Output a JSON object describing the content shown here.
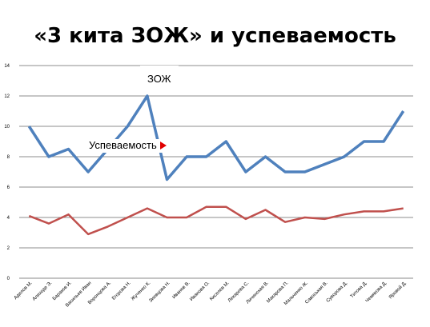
{
  "title": "«3 кита ЗОЖ» и успеваемость",
  "chart_data": {
    "type": "line",
    "categories": [
      "Адилов М.",
      "Алиходе Э.",
      "Бараков И.",
      "Васильев Иван",
      "Воронцова А.",
      "Егорова Н.",
      "Жученко К.",
      "Зиевцова Н.",
      "Иванов В.",
      "Иванова О.",
      "Киселев М.",
      "Лекарова С.",
      "Личинская В.",
      "Макарова П.",
      "Мальченко Ж.",
      "Савоськая В.",
      "Суворова Д.",
      "Титова Д.",
      "Чемякова Д.",
      "Яровой Д."
    ],
    "series": [
      {
        "name": "ЗОЖ",
        "color": "#4f81bd",
        "values": [
          10,
          8,
          8.5,
          7,
          8.5,
          10,
          12,
          6.5,
          8,
          8,
          9,
          7,
          8,
          7,
          7,
          7.5,
          8,
          9,
          9,
          11
        ]
      },
      {
        "name": "Успеваемость",
        "color": "#c0504d",
        "values": [
          4.1,
          3.6,
          4.2,
          2.9,
          3.4,
          4,
          4.6,
          4,
          4,
          4.7,
          4.7,
          3.9,
          4.5,
          3.7,
          4,
          3.9,
          4.2,
          4.4,
          4.4,
          4.6
        ]
      }
    ],
    "yticks": [
      0,
      2,
      4,
      6,
      8,
      10,
      12,
      14
    ],
    "ylim": [
      0,
      14
    ],
    "grid": true,
    "xlabel": "",
    "ylabel": ""
  },
  "labels": {
    "zozh": "ЗОЖ",
    "usp": "Успеваемость"
  }
}
